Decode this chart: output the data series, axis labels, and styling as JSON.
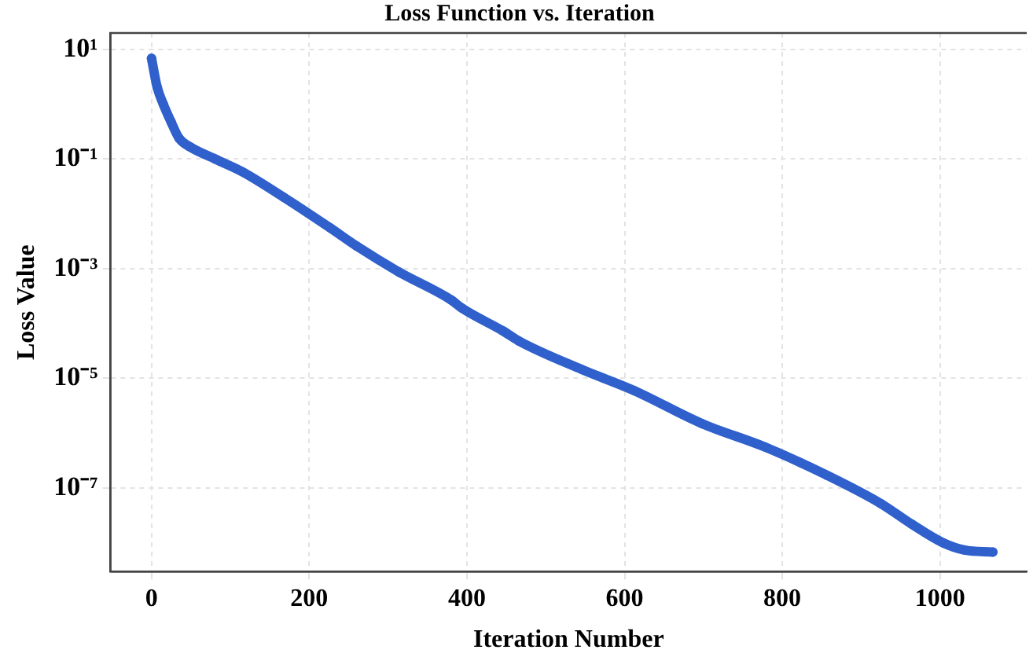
{
  "chart_data": {
    "type": "line",
    "title": "Loss Function vs. Iteration",
    "xlabel": "Iteration Number",
    "ylabel": "Loss Value",
    "log": "y",
    "grid": true,
    "marker": "circle",
    "line_style": "solid",
    "xlim": [
      -52,
      1110
    ],
    "xticks": [
      0,
      200,
      400,
      600,
      800,
      1000
    ],
    "ylim": [
      3e-09,
      20
    ],
    "yticks": [
      {
        "value": 10,
        "label": "10¹"
      },
      {
        "value": 0.1,
        "label": "10⁻¹"
      },
      {
        "value": 0.001,
        "label": "10⁻³"
      },
      {
        "value": 1e-05,
        "label": "10⁻⁵"
      },
      {
        "value": 1e-07,
        "label": "10⁻⁷"
      }
    ],
    "x": [
      0,
      7,
      15,
      25,
      35,
      48,
      81,
      115,
      168,
      227,
      260,
      314,
      380,
      394,
      446,
      466,
      546,
      612,
      698,
      778,
      857,
      925,
      964,
      1004,
      1031,
      1067
    ],
    "series": [
      {
        "color": "#3060cc",
        "values": [
          6.9,
          2.1,
          1.0,
          0.47,
          0.24,
          0.17,
          0.1,
          0.059,
          0.02,
          0.0055,
          0.0026,
          0.00087,
          0.00027,
          0.00019,
          7.3e-05,
          4.8e-05,
          1.45e-05,
          6e-06,
          1.5e-06,
          5.6e-07,
          1.7e-07,
          5.2e-08,
          2.2e-08,
          1e-08,
          7.4e-09,
          6.8e-09
        ]
      }
    ]
  }
}
